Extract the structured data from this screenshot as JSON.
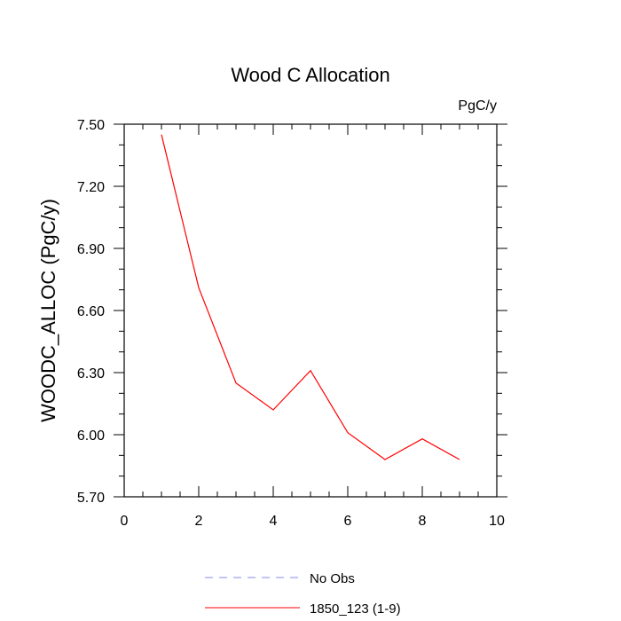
{
  "chart_data": {
    "type": "line",
    "title": "Wood C Allocation",
    "units_label": "PgC/y",
    "xlabel": "",
    "ylabel": "WOODC_ALLOC  (PgC/y)",
    "xlim": [
      0,
      10
    ],
    "ylim": [
      5.7,
      7.5
    ],
    "x_ticks": [
      0,
      2,
      4,
      6,
      8,
      10
    ],
    "x_tick_labels": [
      "0",
      "2",
      "4",
      "6",
      "8",
      "10"
    ],
    "y_ticks": [
      5.7,
      6.0,
      6.3,
      6.6,
      6.9,
      7.2,
      7.5
    ],
    "y_tick_labels": [
      "5.70",
      "6.00",
      "6.30",
      "6.60",
      "6.90",
      "7.20",
      "7.50"
    ],
    "grid": false,
    "legend_position": "bottom",
    "series": [
      {
        "name": "1850_123 (1-9)",
        "color": "#ff0000",
        "dash": "solid",
        "x": [
          1,
          2,
          3,
          4,
          5,
          6,
          7,
          8,
          9
        ],
        "y": [
          7.45,
          6.71,
          6.25,
          6.12,
          6.31,
          6.01,
          5.88,
          5.98,
          5.88
        ]
      }
    ],
    "legend": [
      {
        "name": "No Obs",
        "color": "#8a8aef",
        "dash": "dashed"
      },
      {
        "name": "1850_123 (1-9)",
        "color": "#ff0000",
        "dash": "solid"
      }
    ]
  }
}
